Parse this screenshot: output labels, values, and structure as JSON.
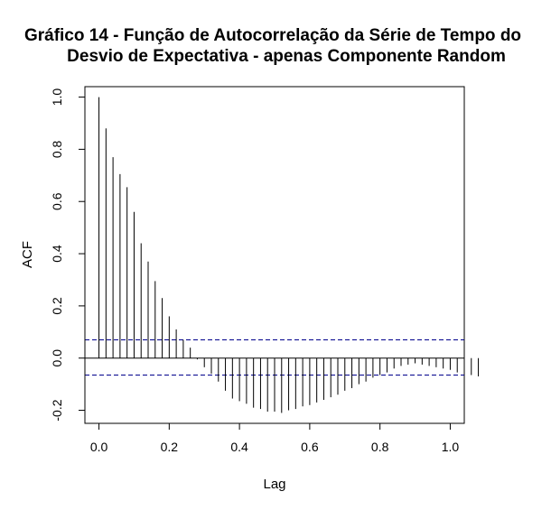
{
  "chart_data": {
    "type": "bar",
    "title_lines": [
      "Gráfico 14 - Função de Autocorrelação da Série de Tempo do",
      "Desvio de Expectativa - apenas Componente Random"
    ],
    "xlabel": "Lag",
    "ylabel": "ACF",
    "xlim": [
      -0.04,
      1.04
    ],
    "ylim": [
      -0.25,
      1.04
    ],
    "x_ticks": [
      0.0,
      0.2,
      0.4,
      0.6,
      0.8,
      1.0
    ],
    "x_tick_labels": [
      "0.0",
      "0.2",
      "0.4",
      "0.6",
      "0.8",
      "1.0"
    ],
    "y_ticks": [
      -0.2,
      0.0,
      0.2,
      0.4,
      0.6,
      0.8,
      1.0
    ],
    "y_tick_labels": [
      "-0.2",
      "0.0",
      "0.2",
      "0.4",
      "0.6",
      "0.8",
      "1.0"
    ],
    "confidence_bounds": [
      0.07,
      -0.065
    ],
    "colors": {
      "bars": "#000000",
      "confidence": "#00008B",
      "zero_line": "#000000"
    },
    "lag_step": 0.02,
    "acf_values": [
      1.0,
      0.88,
      0.77,
      0.705,
      0.655,
      0.56,
      0.44,
      0.37,
      0.295,
      0.23,
      0.16,
      0.11,
      0.07,
      0.04,
      -0.005,
      -0.035,
      -0.06,
      -0.09,
      -0.125,
      -0.155,
      -0.165,
      -0.175,
      -0.19,
      -0.195,
      -0.205,
      -0.205,
      -0.21,
      -0.2,
      -0.195,
      -0.185,
      -0.18,
      -0.17,
      -0.16,
      -0.15,
      -0.14,
      -0.125,
      -0.115,
      -0.1,
      -0.09,
      -0.075,
      -0.065,
      -0.055,
      -0.04,
      -0.03,
      -0.025,
      -0.02,
      -0.025,
      -0.03,
      -0.035,
      -0.04,
      -0.045,
      -0.055,
      -0.06,
      -0.065,
      -0.07
    ]
  }
}
